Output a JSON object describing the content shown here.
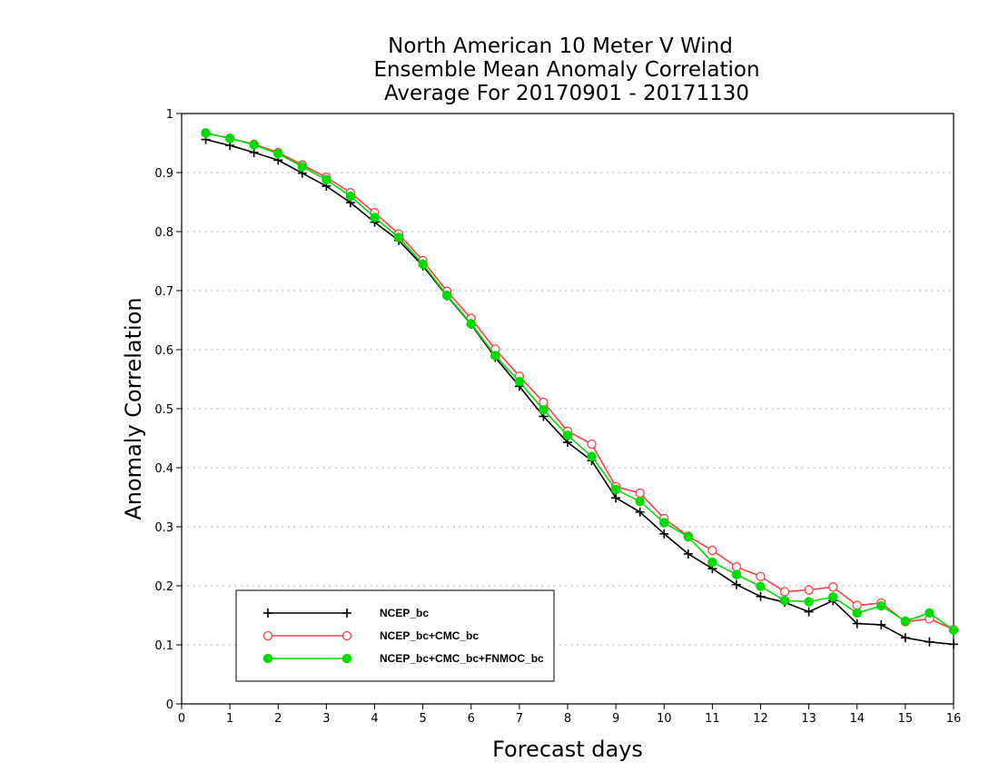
{
  "chart_data": {
    "type": "line",
    "title": [
      "North American 10 Meter V Wind",
      "Ensemble Mean Anomaly Correlation",
      "Average For 20170901 - 20171130"
    ],
    "xlabel": "Forecast days",
    "ylabel": "Anomaly Correlation",
    "xlim": [
      0,
      16
    ],
    "ylim": [
      0,
      1
    ],
    "xticks": [
      0,
      1,
      2,
      3,
      4,
      5,
      6,
      7,
      8,
      9,
      10,
      11,
      12,
      13,
      14,
      15,
      16
    ],
    "yticks": [
      0,
      0.1,
      0.2,
      0.3,
      0.4,
      0.5,
      0.6,
      0.7,
      0.8,
      0.9,
      1
    ],
    "ytick_labels": [
      "0",
      "0.1",
      "0.2",
      "0.3",
      "0.4",
      "0.5",
      "0.6",
      "0.7",
      "0.8",
      "0.9",
      "1"
    ],
    "grid": "horizontal-dotted",
    "legend_position": "bottom-left",
    "x": [
      0.5,
      1,
      1.5,
      2,
      2.5,
      3,
      3.5,
      4,
      4.5,
      5,
      5.5,
      6,
      6.5,
      7,
      7.5,
      8,
      8.5,
      9,
      9.5,
      10,
      10.5,
      11,
      11.5,
      12,
      12.5,
      13,
      13.5,
      14,
      14.5,
      15,
      15.5,
      16
    ],
    "series": [
      {
        "name": "NCEP_bc",
        "color": "#000000",
        "marker": "plus",
        "values": [
          0.956,
          0.946,
          0.934,
          0.921,
          0.899,
          0.877,
          0.849,
          0.816,
          0.785,
          0.742,
          0.691,
          0.643,
          0.587,
          0.538,
          0.487,
          0.443,
          0.412,
          0.349,
          0.325,
          0.288,
          0.254,
          0.229,
          0.202,
          0.182,
          0.172,
          0.156,
          0.175,
          0.136,
          0.134,
          0.112,
          0.105,
          0.101
        ]
      },
      {
        "name": "NCEP_bc+CMC_bc",
        "color": "#ff4040",
        "marker": "open-circle",
        "values": [
          0.967,
          0.958,
          0.948,
          0.934,
          0.913,
          0.892,
          0.866,
          0.832,
          0.796,
          0.751,
          0.699,
          0.653,
          0.601,
          0.555,
          0.511,
          0.462,
          0.44,
          0.368,
          0.357,
          0.314,
          0.284,
          0.26,
          0.232,
          0.216,
          0.19,
          0.193,
          0.198,
          0.167,
          0.171,
          0.139,
          0.144,
          0.126
        ]
      },
      {
        "name": "NCEP_bc+CMC_bc+FNMOC_bc",
        "color": "#00dc00",
        "marker": "filled-circle",
        "values": [
          0.967,
          0.958,
          0.947,
          0.932,
          0.91,
          0.888,
          0.86,
          0.824,
          0.79,
          0.745,
          0.692,
          0.644,
          0.59,
          0.546,
          0.498,
          0.455,
          0.419,
          0.363,
          0.343,
          0.307,
          0.283,
          0.24,
          0.219,
          0.199,
          0.175,
          0.173,
          0.181,
          0.154,
          0.166,
          0.14,
          0.154,
          0.125
        ]
      }
    ]
  }
}
